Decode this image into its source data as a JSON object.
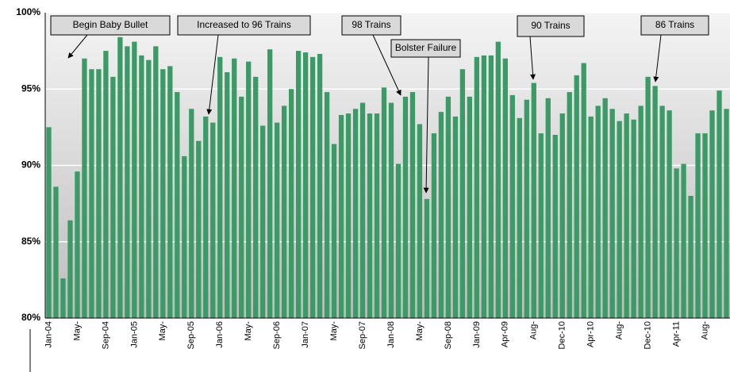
{
  "chart_data": {
    "type": "bar",
    "categories": [
      "Jan-04",
      null,
      null,
      null,
      "May-",
      null,
      null,
      null,
      "Sep-04",
      null,
      null,
      null,
      "Jan-05",
      null,
      null,
      null,
      "May-",
      null,
      null,
      null,
      "Sep-05",
      null,
      null,
      null,
      "Jan-06",
      null,
      null,
      null,
      "May-",
      null,
      null,
      null,
      "Sep-06",
      null,
      null,
      null,
      "Jan-07",
      null,
      null,
      null,
      "May-",
      null,
      null,
      null,
      "Sep-07",
      null,
      null,
      null,
      "Jan-08",
      null,
      null,
      null,
      "May-",
      null,
      null,
      null,
      "Sep-08",
      null,
      null,
      null,
      "Jan-09",
      null,
      null,
      null,
      "Apr-09",
      null,
      null,
      null,
      "Aug-",
      null,
      null,
      null,
      "Dec-10",
      null,
      null,
      null,
      "Apr-10",
      null,
      null,
      null,
      "Aug-",
      null,
      null,
      null,
      "Dec-10",
      null,
      null,
      null,
      "Apr-11",
      null,
      null,
      null,
      "Aug-",
      null,
      null,
      null
    ],
    "values": [
      92.5,
      88.6,
      82.6,
      86.4,
      89.6,
      97.0,
      96.3,
      96.3,
      97.5,
      95.8,
      98.4,
      97.8,
      98.1,
      97.2,
      96.9,
      97.8,
      96.3,
      96.5,
      94.8,
      90.6,
      93.7,
      91.6,
      93.2,
      92.8,
      97.1,
      96.1,
      97.0,
      94.5,
      96.8,
      95.8,
      92.6,
      97.6,
      92.8,
      93.9,
      95.0,
      97.5,
      97.4,
      97.1,
      97.3,
      94.8,
      91.4,
      93.3,
      93.4,
      93.7,
      94.1,
      93.4,
      93.4,
      95.1,
      94.1,
      90.1,
      94.5,
      94.8,
      92.7,
      87.8,
      92.1,
      93.5,
      94.5,
      93.2,
      96.3,
      94.5,
      97.1,
      97.2,
      97.2,
      98.1,
      97.0,
      94.6,
      93.1,
      94.3,
      95.4,
      92.1,
      94.4,
      92.0,
      93.4,
      94.8,
      95.9,
      96.7,
      93.2,
      93.9,
      94.4,
      93.7,
      92.9,
      93.4,
      93.0,
      93.9,
      95.8,
      95.2,
      93.9,
      93.6,
      89.8,
      90.1,
      88.0,
      92.1,
      92.1,
      93.6,
      94.9,
      93.7
    ],
    "color": "#3c9a66",
    "ylim": [
      80,
      100
    ],
    "yticks": [
      {
        "value": 80,
        "label": "80%"
      },
      {
        "value": 85,
        "label": "85%"
      },
      {
        "value": 90,
        "label": "90%"
      },
      {
        "value": 95,
        "label": "95%"
      },
      {
        "value": 100,
        "label": "100%"
      }
    ],
    "grid": true,
    "annotations": [
      "Begin Baby Bullet",
      "Increased to 96 Trains",
      "98 Trains",
      "Bolster Failure",
      "90 Trains",
      "86 Trains"
    ]
  }
}
